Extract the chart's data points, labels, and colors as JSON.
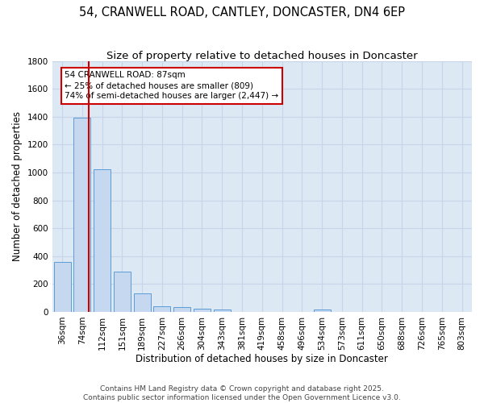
{
  "title_line1": "54, CRANWELL ROAD, CANTLEY, DONCASTER, DN4 6EP",
  "title_line2": "Size of property relative to detached houses in Doncaster",
  "xlabel": "Distribution of detached houses by size in Doncaster",
  "ylabel": "Number of detached properties",
  "categories": [
    "36sqm",
    "74sqm",
    "112sqm",
    "151sqm",
    "189sqm",
    "227sqm",
    "266sqm",
    "304sqm",
    "343sqm",
    "381sqm",
    "419sqm",
    "458sqm",
    "496sqm",
    "534sqm",
    "573sqm",
    "611sqm",
    "650sqm",
    "688sqm",
    "726sqm",
    "765sqm",
    "803sqm"
  ],
  "values": [
    360,
    1390,
    1025,
    290,
    130,
    40,
    35,
    20,
    15,
    0,
    0,
    0,
    0,
    15,
    0,
    0,
    0,
    0,
    0,
    0,
    0
  ],
  "bar_color": "#c5d8f0",
  "bar_edge_color": "#5b9bd5",
  "bg_color": "#dde8f5",
  "grid_color": "#c8d4e8",
  "annotation_box_text": "54 CRANWELL ROAD: 87sqm\n← 25% of detached houses are smaller (809)\n74% of semi-detached houses are larger (2,447) →",
  "annotation_box_color": "#cc0000",
  "vline_x_index": 1.32,
  "vline_color": "#cc0000",
  "ylim": [
    0,
    1800
  ],
  "yticks": [
    0,
    200,
    400,
    600,
    800,
    1000,
    1200,
    1400,
    1600,
    1800
  ],
  "footer_line1": "Contains HM Land Registry data © Crown copyright and database right 2025.",
  "footer_line2": "Contains public sector information licensed under the Open Government Licence v3.0.",
  "title_fontsize": 10.5,
  "subtitle_fontsize": 9.5,
  "axis_label_fontsize": 8.5,
  "tick_fontsize": 7.5,
  "annotation_fontsize": 7.5,
  "footer_fontsize": 6.5
}
